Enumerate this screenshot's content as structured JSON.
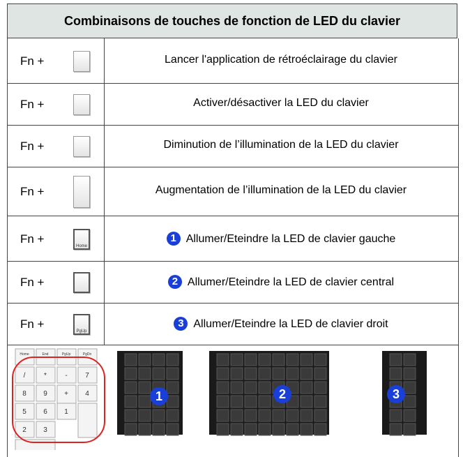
{
  "header": {
    "title": "Combinaisons de touches de fonction de LED du clavier"
  },
  "rows": [
    {
      "key": "Fn +",
      "label": "Lancer l'application de rétroéclairage du clavier"
    },
    {
      "key": "Fn +",
      "label": "Activer/désactiver la LED du clavier"
    },
    {
      "key": "Fn +",
      "label": "Diminution de l’illumination de la LED du clavier"
    },
    {
      "key": "Fn +",
      "label": "Augmentation de l’illumination de la LED du clavier"
    },
    {
      "key": "Fn +",
      "key_cap": "Home",
      "badge": "1",
      "label": "Allumer/Eteindre la LED de clavier gauche"
    },
    {
      "key": "Fn +",
      "badge": "2",
      "label": "Allumer/Eteindre la LED de clavier central"
    },
    {
      "key": "Fn +",
      "key_cap": "PgUp",
      "badge": "3",
      "label": "Allumer/Eteindre la LED de clavier droit"
    }
  ],
  "keypad": {
    "keys": [
      "Home",
      "End",
      "PgUp",
      "PgDn",
      "/",
      "*",
      "-",
      "7",
      "8",
      "9",
      "+",
      "4",
      "5",
      "6",
      "1",
      "2",
      "3"
    ]
  },
  "zones": [
    {
      "badge": "1"
    },
    {
      "badge": "2"
    },
    {
      "badge": "3"
    }
  ]
}
